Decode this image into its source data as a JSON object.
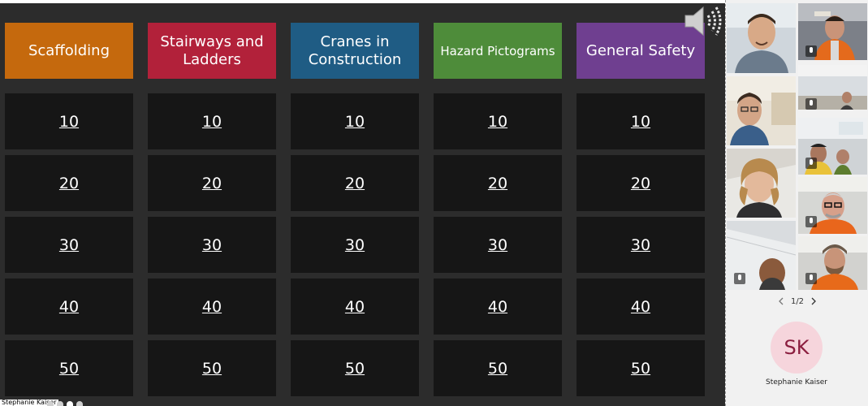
{
  "categories": [
    {
      "label": "Scaffolding",
      "color": "#c5690d"
    },
    {
      "label": "Stairways and Ladders",
      "color": "#b2213a"
    },
    {
      "label": "Cranes in Construction",
      "color": "#1f5c84"
    },
    {
      "label": "Hazard Pictograms",
      "color": "#4e8c3a"
    },
    {
      "label": "General Safety",
      "color": "#6f3f90"
    }
  ],
  "point_values": [
    "10",
    "20",
    "30",
    "40",
    "50"
  ],
  "participants_pager": {
    "prev_icon": "chevron-left-icon",
    "page": "1/2",
    "next_icon": "chevron-right-icon"
  },
  "current_speaker": {
    "initials": "SK",
    "name": "Stephanie Kaiser"
  },
  "presenter_label": "Stephanie Kaiser",
  "icons": {
    "speaker": "speaker-icon",
    "mic_muted": "mic-muted-icon"
  }
}
